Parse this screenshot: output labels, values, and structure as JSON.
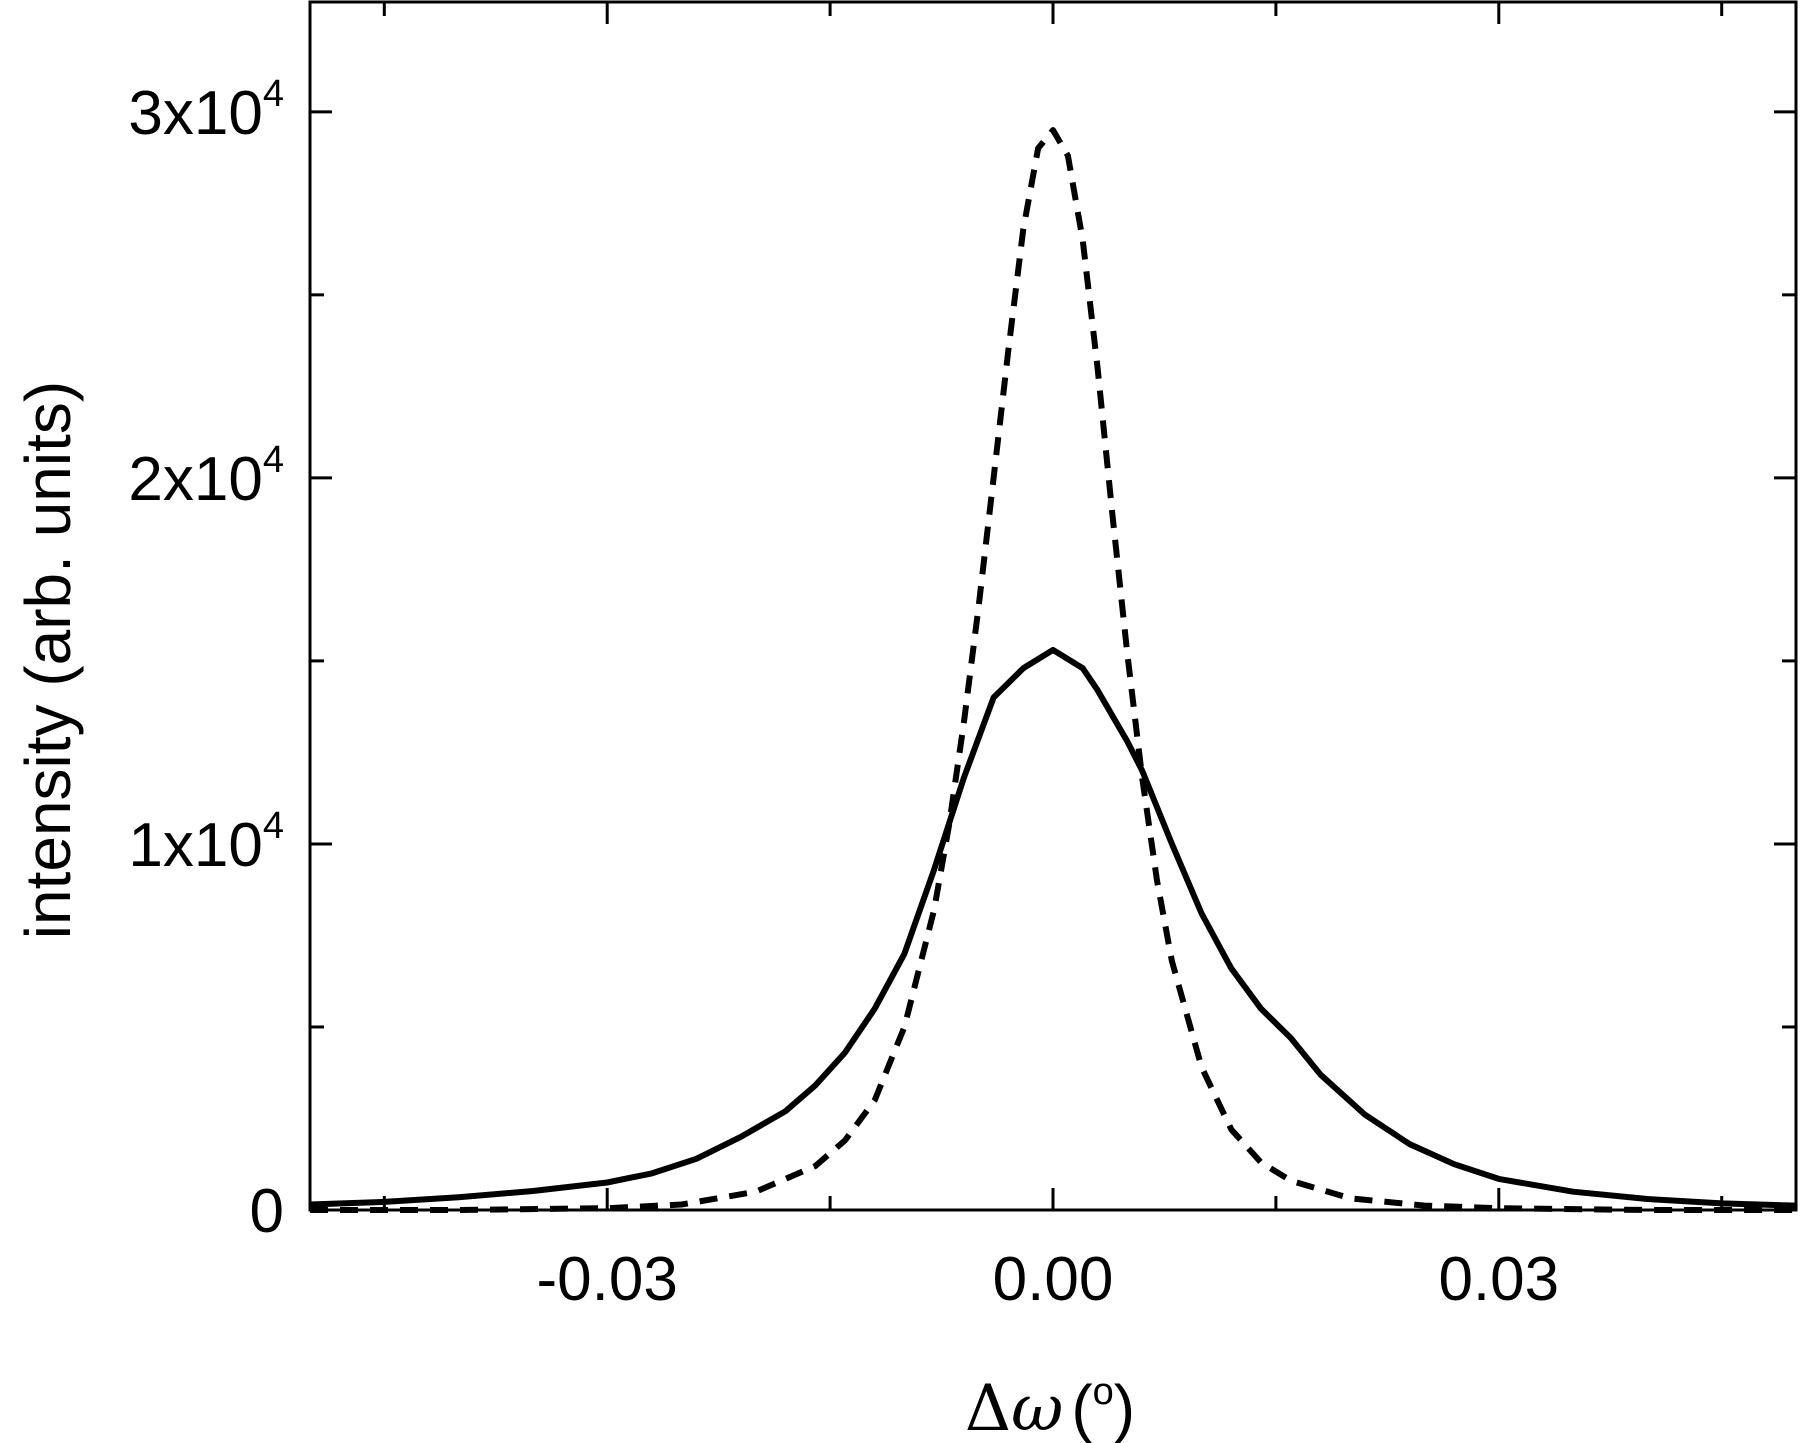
{
  "chart_data": {
    "type": "line",
    "title": "",
    "xlabel": "Δω (°)",
    "xlabel_parts": {
      "symbol": "Δ",
      "variable": "ω",
      "unit_open": "(",
      "unit_sup": "o",
      "unit_close": ")"
    },
    "ylabel": "intensity (arb. units)",
    "xlim": [
      -0.05,
      0.05
    ],
    "ylim": [
      0,
      33000
    ],
    "xticks": [
      {
        "value": -0.03,
        "label": "-0.03"
      },
      {
        "value": 0.0,
        "label": "0.00"
      },
      {
        "value": 0.03,
        "label": "0.03"
      }
    ],
    "yticks": [
      {
        "value": 0,
        "base": "0",
        "exp": ""
      },
      {
        "value": 10000,
        "base": "1x10",
        "exp": "4"
      },
      {
        "value": 20000,
        "base": "2x10",
        "exp": "4"
      },
      {
        "value": 30000,
        "base": "3x10",
        "exp": "4"
      }
    ],
    "grid": false,
    "series": [
      {
        "style": "solid",
        "color": "#000000",
        "x": [
          -0.05,
          -0.045,
          -0.04,
          -0.035,
          -0.03,
          -0.027,
          -0.024,
          -0.021,
          -0.018,
          -0.016,
          -0.014,
          -0.012,
          -0.01,
          -0.008,
          -0.006,
          -0.004,
          -0.002,
          0.0,
          0.002,
          0.003,
          0.004,
          0.005,
          0.006,
          0.008,
          0.01,
          0.012,
          0.014,
          0.016,
          0.018,
          0.021,
          0.024,
          0.027,
          0.03,
          0.035,
          0.04,
          0.045,
          0.05
        ],
        "y": [
          150,
          220,
          350,
          520,
          750,
          1000,
          1400,
          2000,
          2700,
          3400,
          4300,
          5500,
          7000,
          9300,
          11800,
          14000,
          14800,
          15300,
          14800,
          14200,
          13500,
          12800,
          12000,
          10000,
          8100,
          6600,
          5500,
          4700,
          3700,
          2600,
          1800,
          1250,
          850,
          500,
          300,
          180,
          120
        ]
      },
      {
        "style": "dashed",
        "color": "#000000",
        "x": [
          -0.05,
          -0.04,
          -0.03,
          -0.025,
          -0.02,
          -0.016,
          -0.014,
          -0.012,
          -0.01,
          -0.008,
          -0.007,
          -0.006,
          -0.005,
          -0.004,
          -0.003,
          -0.002,
          -0.001,
          0.0,
          0.001,
          0.002,
          0.003,
          0.004,
          0.005,
          0.006,
          0.007,
          0.008,
          0.01,
          0.012,
          0.014,
          0.016,
          0.02,
          0.025,
          0.03,
          0.04,
          0.05
        ],
        "y": [
          0,
          0,
          50,
          150,
          500,
          1200,
          1900,
          3000,
          5000,
          8200,
          10500,
          13300,
          16500,
          20000,
          23500,
          26800,
          29000,
          29500,
          28800,
          26500,
          23000,
          19000,
          15200,
          11800,
          9000,
          6800,
          3900,
          2200,
          1300,
          800,
          320,
          120,
          50,
          0,
          0
        ]
      }
    ]
  }
}
